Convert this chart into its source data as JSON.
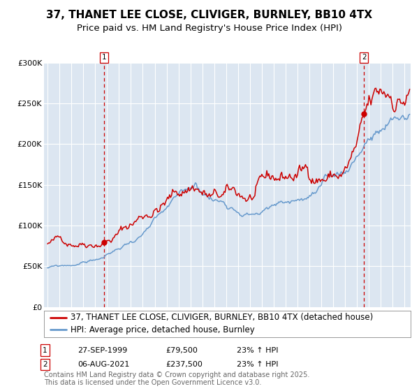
{
  "title": "37, THANET LEE CLOSE, CLIVIGER, BURNLEY, BB10 4TX",
  "subtitle": "Price paid vs. HM Land Registry's House Price Index (HPI)",
  "ylim": [
    0,
    300000
  ],
  "yticks": [
    0,
    50000,
    100000,
    150000,
    200000,
    250000,
    300000
  ],
  "ytick_labels": [
    "£0",
    "£50K",
    "£100K",
    "£150K",
    "£200K",
    "£250K",
    "£300K"
  ],
  "xstart": 1995.0,
  "xend": 2025.5,
  "bg_color": "#dce6f1",
  "fig_bg_color": "#ffffff",
  "red_color": "#cc0000",
  "blue_color": "#6699cc",
  "legend_label_red": "37, THANET LEE CLOSE, CLIVIGER, BURNLEY, BB10 4TX (detached house)",
  "legend_label_blue": "HPI: Average price, detached house, Burnley",
  "marker1_year": 1999.74,
  "marker1_price": 79500,
  "marker1_label": "1",
  "marker1_date": "27-SEP-1999",
  "marker1_pct": "23% ↑ HPI",
  "marker2_year": 2021.59,
  "marker2_price": 237500,
  "marker2_label": "2",
  "marker2_date": "06-AUG-2021",
  "marker2_pct": "23% ↑ HPI",
  "footer": "Contains HM Land Registry data © Crown copyright and database right 2025.\nThis data is licensed under the Open Government Licence v3.0.",
  "title_fontsize": 11,
  "subtitle_fontsize": 9.5,
  "tick_fontsize": 8,
  "legend_fontsize": 8.5,
  "footer_fontsize": 7
}
